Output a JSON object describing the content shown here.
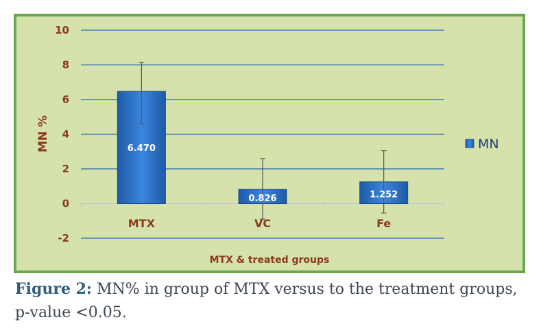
{
  "chart_data": {
    "type": "bar",
    "title": "",
    "xlabel": "MTX & treated groups",
    "ylabel": "MN %",
    "ylim": [
      -2,
      10
    ],
    "yticks": [
      -2,
      0,
      2,
      4,
      6,
      8,
      10
    ],
    "categories": [
      "MTX",
      "VC",
      "Fe"
    ],
    "series": [
      {
        "name": "MN",
        "values": [
          6.47,
          0.826,
          1.252
        ],
        "labels": [
          "6.470",
          "0.826",
          "1.252"
        ],
        "error_upper": [
          8.15,
          2.6,
          3.05
        ],
        "error_lower": [
          4.6,
          -0.9,
          -0.55
        ]
      }
    ],
    "grid": true,
    "legend": "right",
    "colors": {
      "bar": "#2e6ec4",
      "grid": "#3e7cb1",
      "background": "#d5e2ac",
      "frame": "#6aa84f",
      "text": "#8b3a1e"
    }
  },
  "caption": {
    "label": "Figure 2:",
    "text": " MN% in group of MTX versus to the treatment groups, p-value <0.05."
  }
}
